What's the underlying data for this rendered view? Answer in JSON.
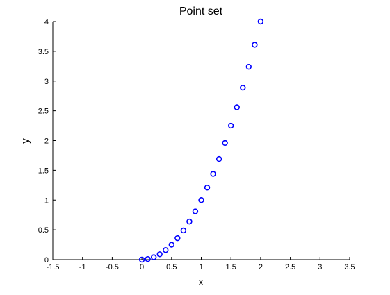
{
  "chart_data": {
    "type": "scatter",
    "title": "Point set",
    "xlabel": "x",
    "ylabel": "y",
    "xlim": [
      -1.5,
      3.5
    ],
    "ylim": [
      0,
      4
    ],
    "xticks": [
      "-1.5",
      "-1",
      "-0.5",
      "0",
      "0.5",
      "1",
      "1.5",
      "2",
      "2.5",
      "3",
      "3.5"
    ],
    "yticks": [
      "0",
      "0.5",
      "1",
      "1.5",
      "2",
      "2.5",
      "3",
      "3.5",
      "4"
    ],
    "grid": false,
    "marker": "open-circle",
    "marker_color": "#0000ff",
    "series": [
      {
        "x": [
          0,
          0.1,
          0.2,
          0.3,
          0.4,
          0.5,
          0.6,
          0.7,
          0.8,
          0.9,
          1.0,
          1.1,
          1.2,
          1.3,
          1.4,
          1.5,
          1.6,
          1.7,
          1.8,
          1.9,
          2.0
        ],
        "values": [
          0,
          0.01,
          0.04,
          0.09,
          0.16,
          0.25,
          0.36,
          0.49,
          0.64,
          0.81,
          1.0,
          1.21,
          1.44,
          1.69,
          1.96,
          2.25,
          2.56,
          2.89,
          3.24,
          3.61,
          4.0
        ]
      }
    ]
  }
}
